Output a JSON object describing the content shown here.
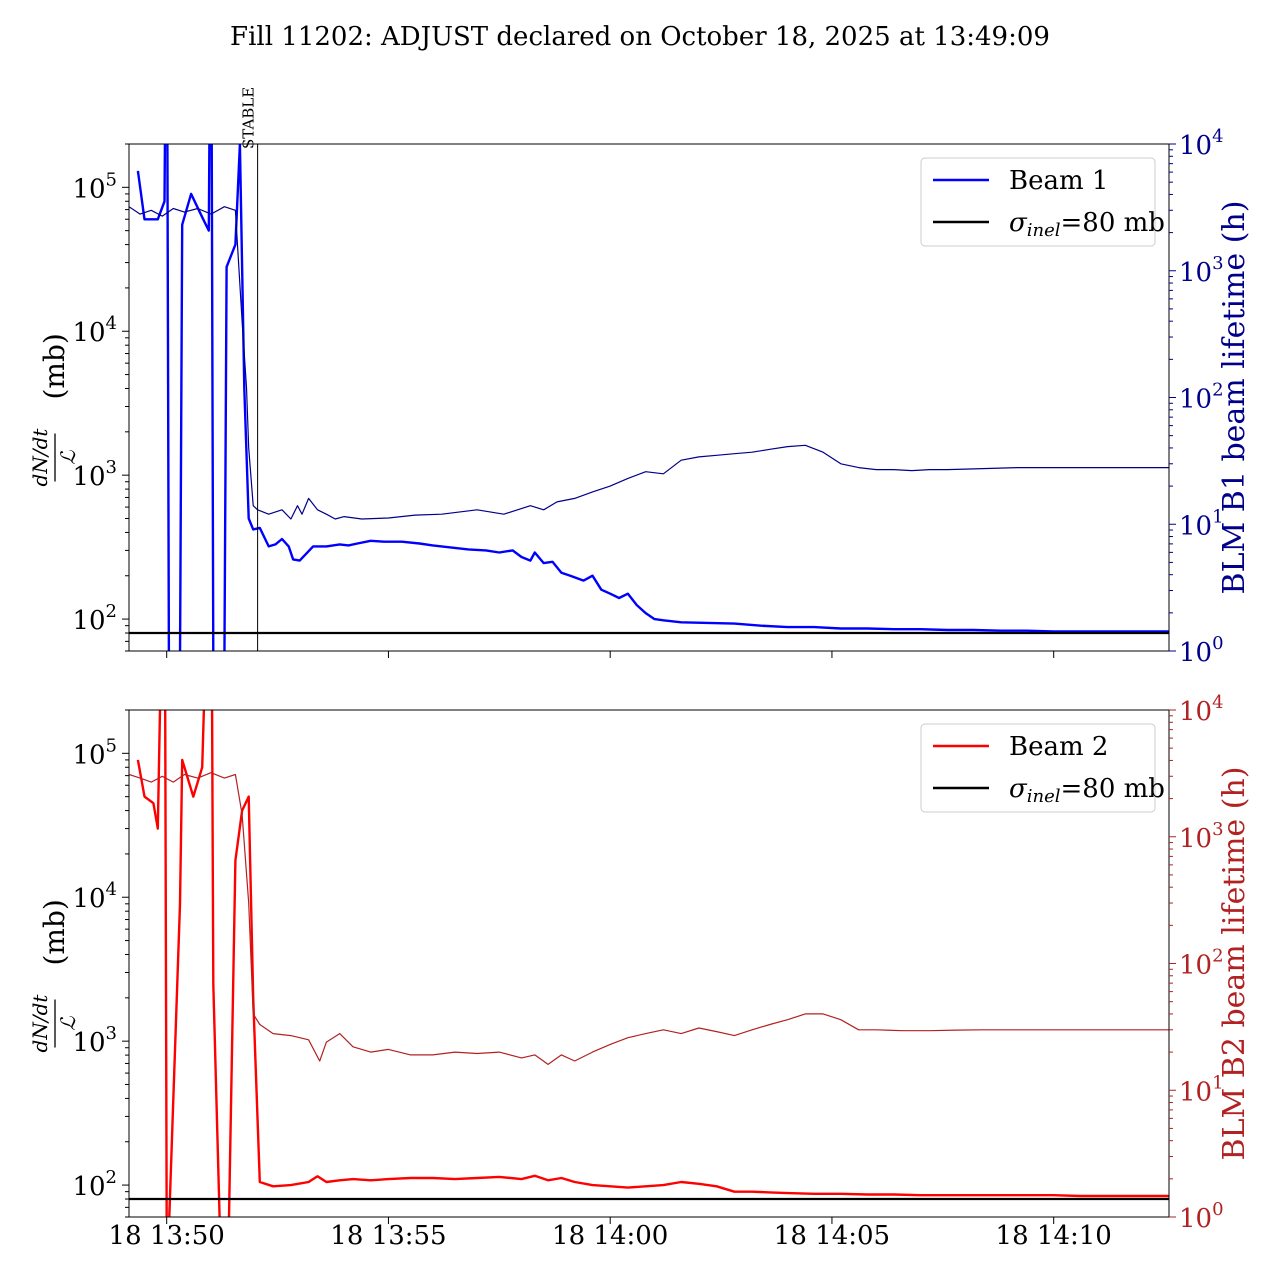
{
  "figure": {
    "title": "Fill 11202: ADJUST declared on October 18, 2025 at 13:49:09"
  },
  "colors": {
    "beam1": "#0000ff",
    "beam1_blm": "#00008b",
    "beam2": "#ff0000",
    "beam2_blm": "#b22222",
    "reference": "#000000"
  },
  "x_axis": {
    "ticks": [
      {
        "t": 0,
        "label": "18 13:50"
      },
      {
        "t": 5,
        "label": "18 13:55"
      },
      {
        "t": 10,
        "label": "18 14:00"
      },
      {
        "t": 15,
        "label": "18 14:05"
      },
      {
        "t": 20,
        "label": "18 14:10"
      }
    ]
  },
  "chart_data": [
    {
      "type": "line",
      "panel": "top",
      "x_unit": "minutes after 18 13:50",
      "xlim": [
        -0.85,
        22.6
      ],
      "ylabel": "dN/dt / ℒ (mb)",
      "ylabel_parts": {
        "num": "dN/dt",
        "den": "ℒ",
        "unit": "(mb)"
      },
      "ylim": [
        60,
        200000
      ],
      "yscale": "log",
      "yticks": [
        {
          "v": 100,
          "base": "10",
          "exp": "2"
        },
        {
          "v": 1000,
          "base": "10",
          "exp": "3"
        },
        {
          "v": 10000,
          "base": "10",
          "exp": "4"
        },
        {
          "v": 100000,
          "base": "10",
          "exp": "5"
        }
      ],
      "y2label": "BLM B1 beam lifetime (h)",
      "y2lim": [
        1,
        10000
      ],
      "y2scale": "log",
      "y2ticks": [
        {
          "v": 1,
          "base": "10",
          "exp": "0"
        },
        {
          "v": 10,
          "base": "10",
          "exp": "1"
        },
        {
          "v": 100,
          "base": "10",
          "exp": "2"
        },
        {
          "v": 1000,
          "base": "10",
          "exp": "3"
        },
        {
          "v": 10000,
          "base": "10",
          "exp": "4"
        }
      ],
      "vline": {
        "x": 2.05,
        "label": "STABLE"
      },
      "legend": {
        "position": "top-right",
        "entries": [
          {
            "label": "Beam 1",
            "color": "#0000ff"
          },
          {
            "label_main": "σ",
            "label_sub": "inel",
            "label_tail": "=80 mb",
            "color": "#000000"
          }
        ]
      },
      "series": [
        {
          "name": "Beam 1",
          "axis": "left",
          "x": [
            -0.65,
            -0.5,
            -0.2,
            -0.05,
            0.0,
            0.05,
            0.3,
            0.35,
            0.55,
            0.8,
            0.95,
            1.0,
            1.05,
            1.3,
            1.35,
            1.55,
            1.65,
            1.75,
            1.85,
            1.95,
            2.1,
            2.3,
            2.45,
            2.6,
            2.75,
            2.85,
            3.0,
            3.3,
            3.6,
            3.9,
            4.1,
            4.3,
            4.6,
            4.9,
            5.3,
            5.7,
            6.0,
            6.4,
            6.8,
            7.2,
            7.5,
            7.8,
            8.0,
            8.2,
            8.3,
            8.5,
            8.7,
            8.9,
            9.1,
            9.4,
            9.6,
            9.8,
            10.0,
            10.2,
            10.4,
            10.6,
            10.8,
            11.0,
            11.2,
            11.6,
            12.2,
            12.8,
            13.4,
            14.0,
            14.6,
            15.2,
            15.8,
            16.4,
            17.0,
            17.6,
            18.2,
            18.8,
            19.4,
            20.0,
            20.6,
            21.2,
            21.8,
            22.6
          ],
          "y": [
            130000,
            60000,
            60000,
            80000,
            10000000.0,
            50,
            50,
            55000,
            90000,
            62000,
            50000,
            10000000.0,
            50,
            50,
            28000,
            40000,
            200000,
            4000,
            500,
            420,
            430,
            320,
            330,
            360,
            320,
            260,
            255,
            320,
            320,
            330,
            325,
            335,
            350,
            345,
            345,
            335,
            325,
            315,
            305,
            300,
            290,
            300,
            270,
            255,
            290,
            245,
            250,
            210,
            200,
            185,
            200,
            160,
            150,
            140,
            150,
            125,
            110,
            100,
            98,
            95,
            94,
            93,
            90,
            88,
            88,
            86,
            86,
            85,
            85,
            84,
            84,
            83,
            83,
            82,
            82,
            82,
            82,
            82
          ]
        },
        {
          "name": "Beam 1 BLM lifetime",
          "axis": "right",
          "x": [
            -0.85,
            -0.6,
            -0.35,
            -0.1,
            0.15,
            0.4,
            0.7,
            1.0,
            1.3,
            1.55,
            1.7,
            1.8,
            1.85,
            1.95,
            2.05,
            2.3,
            2.6,
            2.8,
            2.95,
            3.05,
            3.2,
            3.4,
            3.6,
            3.8,
            4.0,
            4.4,
            5.0,
            5.6,
            6.2,
            7.0,
            7.6,
            8.2,
            8.5,
            8.8,
            9.2,
            9.6,
            10.0,
            10.4,
            10.8,
            11.2,
            11.6,
            12.0,
            12.4,
            12.8,
            13.2,
            13.6,
            14.0,
            14.4,
            14.8,
            15.2,
            15.6,
            16.0,
            16.4,
            16.8,
            17.2,
            17.6,
            18.4,
            19.2,
            20.0,
            20.8,
            21.6,
            22.6
          ],
          "y": [
            3200,
            2800,
            3000,
            2700,
            3100,
            2900,
            3100,
            2800,
            3200,
            3000,
            400,
            120,
            40,
            14,
            13,
            12,
            13,
            11,
            14,
            12,
            16,
            13,
            12,
            11,
            11.5,
            11,
            11.2,
            11.8,
            12,
            13,
            12,
            14,
            13,
            15,
            16,
            18,
            20,
            23,
            26,
            25,
            32,
            34,
            35,
            36,
            37,
            39,
            41,
            42,
            37,
            30,
            28,
            27,
            27,
            26.5,
            27,
            27,
            27.5,
            28,
            28,
            28,
            28,
            28
          ]
        }
      ],
      "reference_line": {
        "name": "σ_inel=80 mb",
        "y": 80
      }
    },
    {
      "type": "line",
      "panel": "bottom",
      "x_unit": "minutes after 18 13:50",
      "xlim": [
        -0.85,
        22.6
      ],
      "ylabel": "dN/dt / ℒ (mb)",
      "ylabel_parts": {
        "num": "dN/dt",
        "den": "ℒ",
        "unit": "(mb)"
      },
      "ylim": [
        60,
        200000
      ],
      "yscale": "log",
      "yticks": [
        {
          "v": 100,
          "base": "10",
          "exp": "2"
        },
        {
          "v": 1000,
          "base": "10",
          "exp": "3"
        },
        {
          "v": 10000,
          "base": "10",
          "exp": "4"
        },
        {
          "v": 100000,
          "base": "10",
          "exp": "5"
        }
      ],
      "y2label": "BLM B2 beam lifetime (h)",
      "y2lim": [
        1,
        10000
      ],
      "y2scale": "log",
      "y2ticks": [
        {
          "v": 1,
          "base": "10",
          "exp": "0"
        },
        {
          "v": 10,
          "base": "10",
          "exp": "1"
        },
        {
          "v": 100,
          "base": "10",
          "exp": "2"
        },
        {
          "v": 1000,
          "base": "10",
          "exp": "3"
        },
        {
          "v": 10000,
          "base": "10",
          "exp": "4"
        }
      ],
      "legend": {
        "position": "top-right",
        "entries": [
          {
            "label": "Beam 2",
            "color": "#ff0000"
          },
          {
            "label_main": "σ",
            "label_sub": "inel",
            "label_tail": "=80 mb",
            "color": "#000000"
          }
        ]
      },
      "series": [
        {
          "name": "Beam 2",
          "axis": "left",
          "x": [
            -0.65,
            -0.5,
            -0.3,
            -0.2,
            -0.05,
            0.0,
            0.05,
            0.3,
            0.35,
            0.6,
            0.8,
            1.0,
            1.05,
            1.2,
            1.4,
            1.55,
            1.7,
            1.85,
            1.95,
            2.1,
            2.4,
            2.8,
            3.2,
            3.4,
            3.6,
            3.9,
            4.2,
            4.6,
            5.0,
            5.5,
            6.0,
            6.5,
            7.0,
            7.5,
            8.0,
            8.3,
            8.6,
            8.9,
            9.2,
            9.6,
            10.0,
            10.4,
            10.8,
            11.2,
            11.6,
            12.0,
            12.4,
            12.8,
            13.2,
            13.6,
            14.0,
            14.6,
            15.2,
            15.8,
            16.4,
            17.0,
            17.6,
            18.2,
            18.8,
            19.4,
            20.0,
            20.6,
            21.2,
            21.8,
            22.6
          ],
          "y": [
            90000,
            50000,
            45000,
            30000,
            10000000.0,
            50,
            50,
            9000,
            90000,
            50000,
            80000,
            10000000.0,
            2500,
            50,
            50,
            18000,
            40000,
            50000,
            2000,
            105,
            98,
            100,
            105,
            115,
            105,
            108,
            110,
            108,
            110,
            112,
            112,
            110,
            112,
            114,
            110,
            116,
            108,
            112,
            105,
            100,
            98,
            96,
            98,
            100,
            105,
            102,
            98,
            90,
            90,
            89,
            88,
            87,
            87,
            86,
            86,
            85,
            85,
            85,
            85,
            85,
            85,
            84,
            84,
            84,
            84
          ]
        },
        {
          "name": "Beam 2 BLM lifetime",
          "axis": "right",
          "x": [
            -0.85,
            -0.6,
            -0.35,
            -0.1,
            0.15,
            0.4,
            0.7,
            1.0,
            1.3,
            1.55,
            1.7,
            1.85,
            1.95,
            2.1,
            2.4,
            2.8,
            3.2,
            3.45,
            3.6,
            3.9,
            4.2,
            4.6,
            5.0,
            5.5,
            6.0,
            6.5,
            7.0,
            7.5,
            8.0,
            8.3,
            8.6,
            8.9,
            9.2,
            9.6,
            10.0,
            10.4,
            10.8,
            11.2,
            11.6,
            12.0,
            12.4,
            12.8,
            13.2,
            13.6,
            14.0,
            14.4,
            14.8,
            15.2,
            15.6,
            16.0,
            16.6,
            17.2,
            17.8,
            18.4,
            19.0,
            19.6,
            20.2,
            20.8,
            21.4,
            22.0,
            22.6
          ],
          "y": [
            3100,
            2900,
            2700,
            3000,
            2700,
            3100,
            2900,
            3200,
            2900,
            3100,
            1500,
            300,
            40,
            33,
            28,
            27,
            25,
            17,
            24,
            28,
            22,
            20,
            21,
            19,
            19,
            20,
            19.5,
            20,
            18,
            19,
            16,
            19,
            17,
            20,
            23,
            26,
            28,
            30,
            28,
            31,
            29,
            27,
            30,
            33,
            36,
            40,
            40,
            36,
            30,
            30,
            29.5,
            29.5,
            29.8,
            30,
            30,
            30,
            30,
            30,
            30,
            30,
            30
          ]
        }
      ],
      "reference_line": {
        "name": "σ_inel=80 mb",
        "y": 80
      }
    }
  ]
}
